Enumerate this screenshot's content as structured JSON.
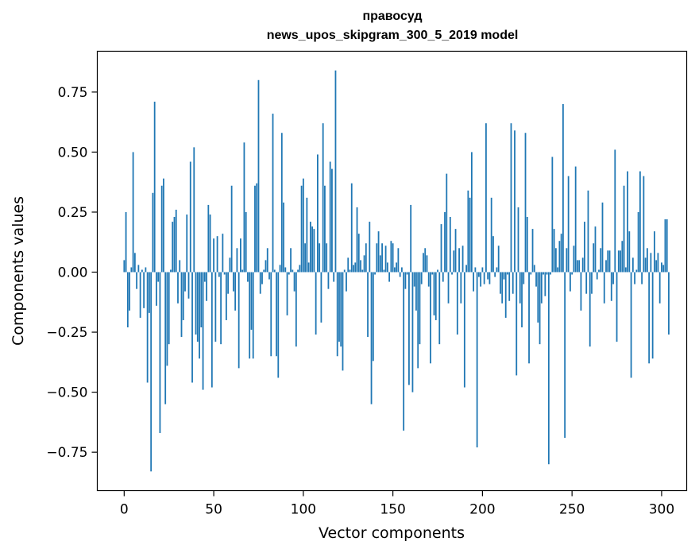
{
  "chart_data": {
    "type": "bar",
    "title": "правосуд",
    "subtitle": "news_upos_skipgram_300_5_2019 model",
    "xlabel": "Vector components",
    "ylabel": "Components values",
    "xlim": [
      -15,
      314
    ],
    "ylim": [
      -0.91,
      0.92
    ],
    "xticks": [
      0,
      50,
      100,
      150,
      200,
      250,
      300
    ],
    "xtick_labels": [
      "0",
      "50",
      "100",
      "150",
      "200",
      "250",
      "300"
    ],
    "yticks": [
      -0.75,
      -0.5,
      -0.25,
      0.0,
      0.25,
      0.5,
      0.75
    ],
    "ytick_labels": [
      "−0.75",
      "−0.50",
      "−0.25",
      "0.00",
      "0.25",
      "0.50",
      "0.75"
    ],
    "grid": false,
    "bar_color": "#1f77b4",
    "series": [
      {
        "values": [
          0.05,
          0.25,
          -0.23,
          -0.16,
          0.02,
          0.5,
          0.08,
          -0.07,
          0.03,
          -0.19,
          0.01,
          -0.15,
          0.02,
          -0.46,
          -0.17,
          -0.83,
          0.33,
          0.71,
          -0.14,
          -0.04,
          -0.67,
          0.36,
          0.39,
          -0.55,
          -0.39,
          -0.3,
          0.01,
          0.21,
          0.23,
          0.26,
          -0.13,
          0.05,
          -0.27,
          -0.2,
          -0.08,
          0.24,
          -0.11,
          0.46,
          -0.46,
          0.52,
          -0.26,
          -0.29,
          -0.36,
          -0.23,
          -0.49,
          -0.04,
          -0.12,
          0.28,
          0.24,
          -0.48,
          0.14,
          -0.29,
          0.15,
          -0.02,
          -0.3,
          0.16,
          -0.01,
          -0.2,
          -0.09,
          0.06,
          0.36,
          -0.08,
          -0.16,
          0.1,
          -0.4,
          0.14,
          0.01,
          0.54,
          0.25,
          -0.04,
          -0.36,
          -0.24,
          -0.36,
          0.36,
          0.37,
          0.8,
          -0.09,
          -0.05,
          0.01,
          0.05,
          0.1,
          -0.03,
          -0.35,
          0.66,
          0.01,
          -0.35,
          -0.44,
          0.03,
          0.58,
          0.29,
          0.02,
          -0.18,
          -0.01,
          0.1,
          0.01,
          -0.08,
          -0.31,
          0.01,
          0.03,
          0.36,
          0.39,
          0.12,
          0.31,
          0.04,
          0.21,
          0.19,
          0.18,
          -0.26,
          0.49,
          0.12,
          -0.21,
          0.62,
          0.36,
          0.12,
          -0.07,
          0.46,
          0.43,
          -0.04,
          0.84,
          -0.35,
          -0.29,
          -0.31,
          -0.41,
          0.01,
          -0.08,
          0.06,
          0.01,
          0.37,
          0.03,
          0.04,
          0.27,
          0.16,
          0.05,
          0.01,
          0.07,
          0.12,
          -0.27,
          0.21,
          -0.55,
          -0.37,
          -0.01,
          0.12,
          0.17,
          0.07,
          0.12,
          0.01,
          0.11,
          0.04,
          -0.04,
          0.13,
          0.12,
          0.02,
          0.04,
          0.1,
          -0.02,
          0.02,
          -0.66,
          -0.07,
          -0.01,
          -0.47,
          0.28,
          -0.5,
          -0.06,
          -0.16,
          -0.4,
          -0.3,
          -0.05,
          0.08,
          0.1,
          0.07,
          -0.06,
          -0.38,
          -0.01,
          -0.18,
          -0.2,
          0.01,
          -0.3,
          0.2,
          -0.04,
          0.25,
          0.41,
          -0.13,
          0.23,
          -0.01,
          0.09,
          0.18,
          -0.26,
          0.1,
          -0.13,
          0.11,
          -0.48,
          0.03,
          0.34,
          0.31,
          0.5,
          -0.08,
          0.02,
          -0.73,
          -0.02,
          -0.06,
          0.02,
          -0.05,
          0.62,
          -0.03,
          -0.05,
          0.31,
          0.15,
          -0.02,
          0.02,
          0.11,
          -0.09,
          -0.13,
          -0.03,
          -0.19,
          -0.01,
          -0.12,
          0.62,
          -0.09,
          0.59,
          -0.43,
          0.27,
          -0.13,
          -0.23,
          -0.05,
          0.58,
          0.23,
          -0.38,
          -0.01,
          0.18,
          0.03,
          -0.06,
          -0.21,
          -0.3,
          -0.13,
          -0.01,
          -0.1,
          -0.01,
          -0.8,
          -0.01,
          0.48,
          0.18,
          0.1,
          0.02,
          0.13,
          0.16,
          0.7,
          -0.69,
          0.1,
          0.4,
          -0.08,
          -0.01,
          0.11,
          0.44,
          0.05,
          0.05,
          -0.16,
          0.06,
          0.21,
          -0.09,
          0.34,
          -0.31,
          -0.09,
          0.12,
          0.19,
          -0.03,
          0.01,
          0.1,
          0.29,
          -0.13,
          0.05,
          0.09,
          0.09,
          -0.12,
          -0.05,
          0.51,
          -0.29,
          0.09,
          0.09,
          0.13,
          0.36,
          0.02,
          0.42,
          0.17,
          -0.44,
          0.06,
          -0.05,
          0.01,
          0.25,
          0.42,
          -0.05,
          0.4,
          0.06,
          0.1,
          -0.38,
          0.08,
          -0.36,
          0.17,
          0.05,
          0.08,
          -0.13,
          0.04,
          0.03,
          0.22,
          0.22,
          -0.26
        ]
      }
    ]
  }
}
